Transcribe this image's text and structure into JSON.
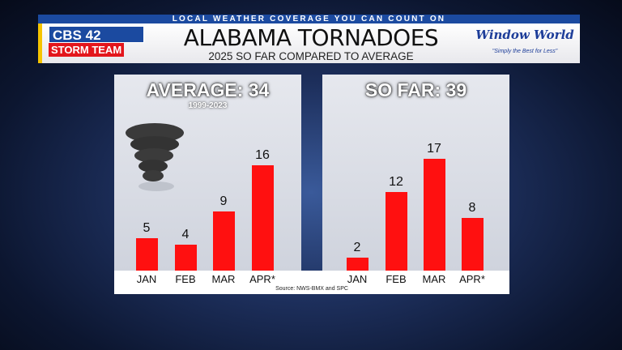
{
  "header": {
    "tagline": "LOCAL WEATHER COVERAGE YOU CAN COUNT ON",
    "title": "ALABAMA TORNADOES",
    "subtitle": "2025 SO FAR COMPARED TO AVERAGE",
    "logo": {
      "station": "CBS 42",
      "team": "STORM TEAM"
    },
    "sponsor": {
      "name": "Window World",
      "tagline": "\"Simply the Best for Less\""
    }
  },
  "colors": {
    "bar": "#ff1010",
    "banner": "#1b4aa0"
  },
  "chart_data": [
    {
      "type": "bar",
      "title": "AVERAGE: 34",
      "subtitle": "1999-2023",
      "categories": [
        "JAN",
        "FEB",
        "MAR",
        "APR*"
      ],
      "values": [
        5,
        4,
        9,
        16
      ],
      "icon": "tornado-icon"
    },
    {
      "type": "bar",
      "title": "SO FAR: 39",
      "categories": [
        "JAN",
        "FEB",
        "MAR",
        "APR*"
      ],
      "values": [
        2,
        12,
        17,
        8
      ]
    }
  ],
  "source": "Source: NWS-BMX and SPC"
}
